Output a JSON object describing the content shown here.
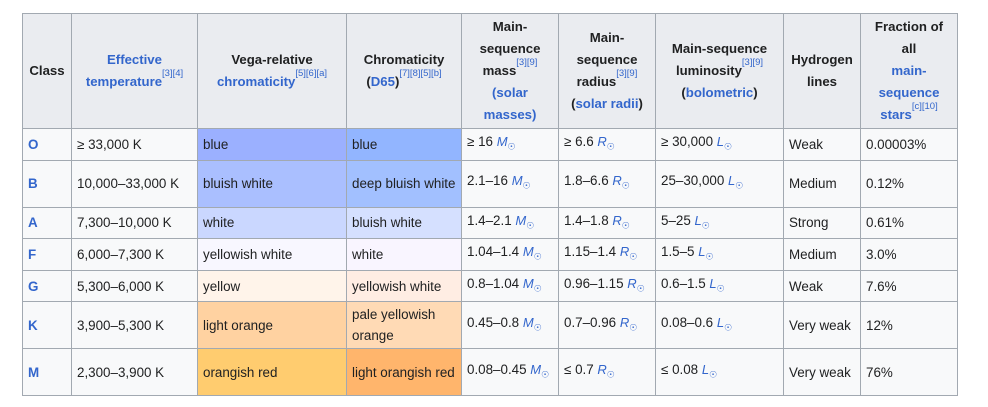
{
  "headers": {
    "class": "Class",
    "eff_temp": "Effective temperature",
    "eff_temp_refs": "[3][4]",
    "vega_line1": "Vega-relative",
    "vega_line2": "chromaticity",
    "vega_refs": "[5][6][a]",
    "chrom_line1": "Chromaticity",
    "chrom_link": "D65",
    "chrom_refs": "[7][8][5][b]",
    "mass_label": "Main-sequence mass",
    "mass_refs": "[3][9]",
    "mass_unit": "(solar masses)",
    "radius_label": "Main-sequence radius",
    "radius_refs": "[3][9]",
    "radius_unit": "solar radii",
    "lum_label": "Main-sequence luminosity",
    "lum_refs": "[3][9]",
    "lum_unit": "bolometric",
    "hydrogen": "Hydrogen lines",
    "fraction_line1": "Fraction of all",
    "fraction_link": "main-sequence stars",
    "fraction_refs": "[c][10]"
  },
  "rows": [
    {
      "class": "O",
      "temp": "≥ 33,000 K",
      "vega": "blue",
      "vega_color": "#9bb0ff",
      "chrom": "blue",
      "chrom_color": "#92b5ff",
      "mass_val": "≥ 16 ",
      "radius_val": "≥ 6.6 ",
      "lum_val": "≥ 30,000 ",
      "hydrogen": "Weak",
      "fraction": "0.00003%"
    },
    {
      "class": "B",
      "temp": "10,000–33,000 K",
      "vega": "bluish white",
      "vega_color": "#aabfff",
      "chrom": "deep bluish white",
      "chrom_color": "#a2c0ff",
      "mass_val": "2.1–16 ",
      "radius_val": "1.8–6.6 ",
      "lum_val": "25–30,000 ",
      "hydrogen": "Medium",
      "fraction": "0.12%"
    },
    {
      "class": "A",
      "temp": "7,300–10,000 K",
      "vega": "white",
      "vega_color": "#cad7ff",
      "chrom": "bluish white",
      "chrom_color": "#d5e0ff",
      "mass_val": "1.4–2.1 ",
      "radius_val": "1.4–1.8 ",
      "lum_val": "5–25 ",
      "hydrogen": "Strong",
      "fraction": "0.61%"
    },
    {
      "class": "F",
      "temp": "6,000–7,300 K",
      "vega": "yellowish white",
      "vega_color": "#f8f7ff",
      "chrom": "white",
      "chrom_color": "#f9f5ff",
      "mass_val": "1.04–1.4 ",
      "radius_val": "1.15–1.4 ",
      "lum_val": "1.5–5 ",
      "hydrogen": "Medium",
      "fraction": "3.0%"
    },
    {
      "class": "G",
      "temp": "5,300–6,000 K",
      "vega": "yellow",
      "vega_color": "#fff4ea",
      "chrom": "yellowish white",
      "chrom_color": "#ffede3",
      "mass_val": "0.8–1.04 ",
      "radius_val": "0.96–1.15 ",
      "lum_val": "0.6–1.5 ",
      "hydrogen": "Weak",
      "fraction": "7.6%"
    },
    {
      "class": "K",
      "temp": "3,900–5,300 K",
      "vega": "light orange",
      "vega_color": "#ffd2a1",
      "chrom": "pale yellowish orange",
      "chrom_color": "#ffdab5",
      "mass_val": "0.45–0.8 ",
      "radius_val": "0.7–0.96 ",
      "lum_val": "0.08–0.6 ",
      "hydrogen": "Very weak",
      "fraction": "12%"
    },
    {
      "class": "M",
      "temp": "2,300–3,900 K",
      "vega": "orangish red",
      "vega_color": "#ffcc6f",
      "chrom": "light orangish red",
      "chrom_color": "#ffb56c",
      "mass_val": "0.08–0.45 ",
      "radius_val": "≤ 0.7 ",
      "lum_val": "≤ 0.08 ",
      "hydrogen": "Very weak",
      "fraction": "76%"
    }
  ],
  "unit_symbols": {
    "mass": "M",
    "radius": "R",
    "lum": "L",
    "sun": "☉"
  }
}
